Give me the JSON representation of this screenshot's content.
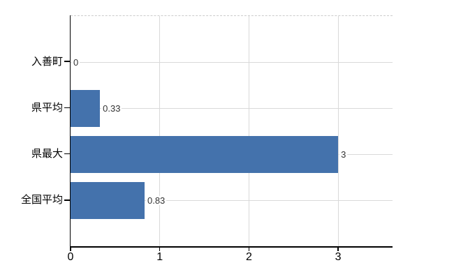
{
  "chart_data": {
    "type": "bar",
    "orientation": "horizontal",
    "title": "",
    "xlabel": "",
    "ylabel": "",
    "categories": [
      "入善町",
      "県平均",
      "県最大",
      "全国平均"
    ],
    "values": [
      0,
      0.33,
      3,
      0.83
    ],
    "value_labels": [
      "0",
      "0.33",
      "3",
      "0.83"
    ],
    "x_ticks": [
      0,
      1,
      2,
      3
    ],
    "x_tick_labels": [
      "0",
      "1",
      "2",
      "3"
    ],
    "xlim": [
      0,
      3.61
    ],
    "grid": true,
    "legend": null,
    "colors": {
      "bar": "#4472ac",
      "grid": "#d9d9d9",
      "axis": "#000000",
      "plot_top_border": "#cccccc",
      "value_label_text": "#333333",
      "category_text": "#000000",
      "tick_text": "#000000",
      "background": "#ffffff"
    }
  }
}
